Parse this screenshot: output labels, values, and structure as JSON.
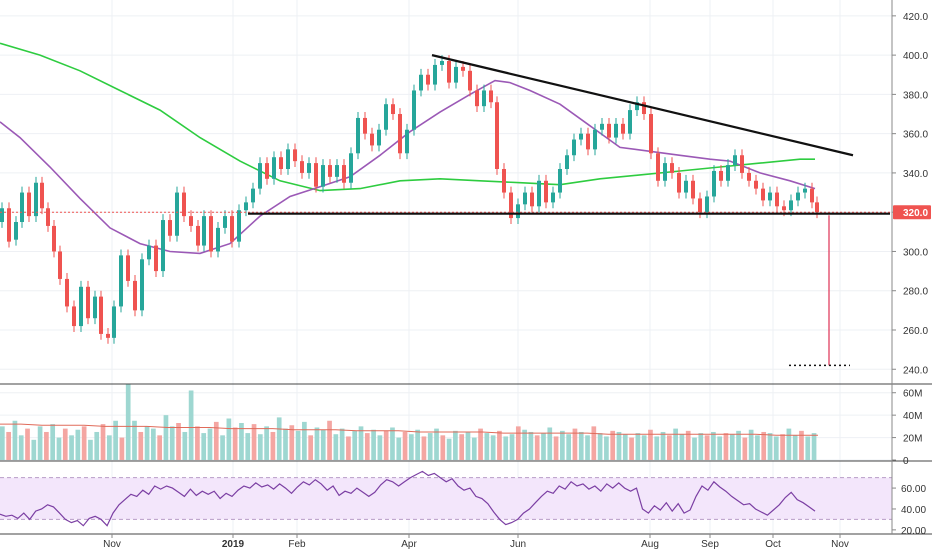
{
  "chart_data": [
    {
      "panel": "price",
      "type": "candlestick",
      "y_ticks": [
        "240.0",
        "260.0",
        "280.0",
        "300.0",
        "320.0",
        "340.0",
        "360.0",
        "380.0",
        "400.0",
        "420.0"
      ],
      "y_tick_values": [
        240,
        260,
        280,
        300,
        320,
        340,
        360,
        380,
        400,
        420
      ],
      "ylim": [
        233,
        424
      ],
      "last_price_label": "320.0",
      "last_price": 320,
      "target_price": 242,
      "support_level": 320,
      "downtrend_line": {
        "from": {
          "date": "2019-04-02",
          "value": 400
        },
        "to": {
          "date": "2019-10-28",
          "value": 349
        }
      },
      "ma_long": [
        [
          0,
          406
        ],
        [
          40,
          400
        ],
        [
          80,
          392
        ],
        [
          120,
          382
        ],
        [
          160,
          372
        ],
        [
          200,
          358
        ],
        [
          240,
          346
        ],
        [
          280,
          336
        ],
        [
          320,
          331
        ],
        [
          360,
          332
        ],
        [
          400,
          336
        ],
        [
          440,
          337
        ],
        [
          480,
          336
        ],
        [
          520,
          335
        ],
        [
          560,
          334
        ],
        [
          600,
          337
        ],
        [
          640,
          339
        ],
        [
          680,
          341
        ],
        [
          720,
          343
        ],
        [
          760,
          345
        ],
        [
          800,
          347
        ],
        [
          815,
          347
        ]
      ],
      "ma_short": [
        [
          0,
          366
        ],
        [
          20,
          358
        ],
        [
          50,
          343
        ],
        [
          80,
          327
        ],
        [
          110,
          312
        ],
        [
          140,
          304
        ],
        [
          170,
          300
        ],
        [
          200,
          299
        ],
        [
          230,
          304
        ],
        [
          260,
          318
        ],
        [
          290,
          328
        ],
        [
          320,
          333
        ],
        [
          350,
          338
        ],
        [
          380,
          349
        ],
        [
          410,
          361
        ],
        [
          440,
          371
        ],
        [
          470,
          380
        ],
        [
          495,
          387
        ],
        [
          510,
          386
        ],
        [
          530,
          382
        ],
        [
          560,
          375
        ],
        [
          590,
          364
        ],
        [
          620,
          353
        ],
        [
          650,
          351
        ],
        [
          680,
          349
        ],
        [
          710,
          347
        ],
        [
          730,
          346
        ],
        [
          760,
          340
        ],
        [
          790,
          336
        ],
        [
          815,
          332
        ]
      ],
      "candle_series": [
        [
          0,
          315,
          322
        ],
        [
          7,
          322,
          305
        ],
        [
          14,
          306,
          315
        ],
        [
          20,
          315,
          330
        ],
        [
          27,
          330,
          318
        ],
        [
          34,
          318,
          335
        ],
        [
          40,
          335,
          322
        ],
        [
          46,
          322,
          313
        ],
        [
          52,
          313,
          300
        ],
        [
          58,
          300,
          286
        ],
        [
          65,
          286,
          272
        ],
        [
          72,
          272,
          262
        ],
        [
          79,
          262,
          282
        ],
        [
          86,
          282,
          266
        ],
        [
          93,
          266,
          277
        ],
        [
          99,
          277,
          258
        ],
        [
          106,
          258,
          256
        ],
        [
          112,
          256,
          272
        ],
        [
          119,
          272,
          298
        ],
        [
          126,
          298,
          285
        ],
        [
          133,
          285,
          270
        ],
        [
          140,
          270,
          296
        ],
        [
          147,
          296,
          303
        ],
        [
          154,
          303,
          290
        ],
        [
          161,
          290,
          316
        ],
        [
          168,
          316,
          308
        ],
        [
          175,
          308,
          330
        ],
        [
          182,
          330,
          318
        ],
        [
          189,
          318,
          313
        ],
        [
          196,
          313,
          303
        ],
        [
          202,
          303,
          318
        ],
        [
          209,
          318,
          300
        ],
        [
          216,
          300,
          312
        ],
        [
          223,
          312,
          318
        ],
        [
          230,
          318,
          305
        ],
        [
          237,
          305,
          321
        ],
        [
          244,
          321,
          325
        ],
        [
          251,
          325,
          332
        ],
        [
          258,
          332,
          345
        ],
        [
          265,
          345,
          337
        ],
        [
          272,
          337,
          348
        ],
        [
          279,
          348,
          342
        ],
        [
          286,
          342,
          352
        ],
        [
          293,
          352,
          346
        ],
        [
          300,
          346,
          340
        ],
        [
          307,
          340,
          345
        ],
        [
          314,
          345,
          333
        ],
        [
          321,
          333,
          344
        ],
        [
          328,
          344,
          338
        ],
        [
          335,
          338,
          344
        ],
        [
          342,
          344,
          335
        ],
        [
          349,
          335,
          350
        ],
        [
          356,
          350,
          368
        ],
        [
          363,
          368,
          360
        ],
        [
          370,
          360,
          354
        ],
        [
          377,
          354,
          362
        ],
        [
          384,
          362,
          375
        ],
        [
          391,
          375,
          370
        ],
        [
          398,
          370,
          350
        ],
        [
          405,
          350,
          362
        ],
        [
          412,
          362,
          382
        ],
        [
          419,
          382,
          390
        ],
        [
          426,
          390,
          385
        ],
        [
          433,
          385,
          395
        ],
        [
          440,
          395,
          397
        ],
        [
          447,
          397,
          386
        ],
        [
          454,
          386,
          394
        ],
        [
          461,
          394,
          392
        ],
        [
          468,
          392,
          382
        ],
        [
          475,
          382,
          374
        ],
        [
          482,
          374,
          382
        ],
        [
          489,
          382,
          376
        ],
        [
          495,
          376,
          342
        ],
        [
          502,
          342,
          330
        ],
        [
          509,
          330,
          317
        ],
        [
          516,
          317,
          324
        ],
        [
          523,
          324,
          330
        ],
        [
          530,
          330,
          323
        ],
        [
          537,
          323,
          336
        ],
        [
          544,
          336,
          325
        ],
        [
          551,
          325,
          330
        ],
        [
          558,
          330,
          342
        ],
        [
          565,
          342,
          349
        ],
        [
          572,
          349,
          357
        ],
        [
          579,
          357,
          360
        ],
        [
          586,
          360,
          352
        ],
        [
          593,
          352,
          362
        ],
        [
          600,
          362,
          365
        ],
        [
          607,
          365,
          358
        ],
        [
          614,
          358,
          365
        ],
        [
          621,
          365,
          360
        ],
        [
          628,
          360,
          372
        ],
        [
          635,
          372,
          376
        ],
        [
          642,
          376,
          370
        ],
        [
          649,
          370,
          350
        ],
        [
          656,
          350,
          336
        ],
        [
          663,
          336,
          345
        ],
        [
          670,
          345,
          340
        ],
        [
          677,
          340,
          330
        ],
        [
          684,
          330,
          336
        ],
        [
          691,
          336,
          327
        ],
        [
          698,
          327,
          320
        ],
        [
          705,
          320,
          328
        ],
        [
          712,
          328,
          341
        ],
        [
          719,
          341,
          336
        ],
        [
          726,
          336,
          344
        ],
        [
          733,
          344,
          349
        ],
        [
          740,
          349,
          340
        ],
        [
          747,
          340,
          336
        ],
        [
          754,
          336,
          332
        ],
        [
          761,
          332,
          326
        ],
        [
          768,
          326,
          330
        ],
        [
          775,
          330,
          323
        ],
        [
          782,
          323,
          321
        ],
        [
          789,
          321,
          326
        ],
        [
          796,
          326,
          330
        ],
        [
          803,
          330,
          332
        ],
        [
          810,
          332,
          325
        ],
        [
          815,
          325,
          320
        ]
      ]
    },
    {
      "panel": "volume",
      "type": "bar",
      "y_ticks": [
        "0",
        "20M",
        "40M",
        "60M"
      ],
      "y_tick_values": [
        0,
        20,
        40,
        60
      ],
      "ylim": [
        0,
        66
      ],
      "values": [
        30,
        25,
        35,
        22,
        28,
        18,
        30,
        25,
        32,
        20,
        28,
        22,
        27,
        30,
        18,
        25,
        32,
        22,
        35,
        20,
        68,
        35,
        25,
        30,
        28,
        22,
        40,
        30,
        33,
        25,
        62,
        30,
        24,
        28,
        34,
        22,
        37,
        29,
        33,
        24,
        32,
        23,
        30,
        25,
        38,
        28,
        31,
        26,
        34,
        22,
        29,
        27,
        35,
        23,
        28,
        21,
        26,
        30,
        24,
        27,
        22,
        26,
        29,
        20,
        25,
        23,
        27,
        21,
        24,
        28,
        22,
        19,
        26,
        23,
        25,
        20,
        28,
        24,
        22,
        26,
        21,
        23,
        30,
        27,
        25,
        22,
        24,
        29,
        21,
        26,
        23,
        28,
        25,
        22,
        30,
        24,
        21,
        26,
        25,
        23,
        20,
        24,
        22,
        27,
        21,
        25,
        22,
        28,
        23,
        26,
        20,
        24,
        22,
        25,
        21,
        24,
        23,
        26,
        20,
        27,
        22,
        25,
        24,
        21,
        23,
        28,
        22,
        26,
        21,
        24
      ],
      "ma_values": [
        32,
        32,
        31,
        31,
        31,
        30,
        30,
        30,
        29,
        29,
        29,
        28,
        28,
        28,
        27,
        27,
        27,
        26,
        26,
        26,
        25,
        25,
        25,
        25,
        24,
        24,
        24,
        24,
        24,
        23,
        23,
        23,
        23,
        23,
        23,
        23,
        23,
        22,
        22,
        22
      ]
    },
    {
      "panel": "rsi",
      "type": "line",
      "y_ticks": [
        "20.00",
        "40.00",
        "60.00"
      ],
      "y_tick_values": [
        20,
        40,
        60
      ],
      "ylim": [
        17,
        84
      ],
      "band": [
        30,
        70
      ],
      "values": [
        35,
        33,
        34,
        31,
        36,
        30,
        38,
        40,
        44,
        42,
        36,
        30,
        27,
        29,
        24,
        31,
        33,
        30,
        24,
        36,
        44,
        49,
        54,
        52,
        58,
        54,
        62,
        59,
        62,
        60,
        56,
        52,
        59,
        53,
        57,
        54,
        57,
        50,
        55,
        52,
        58,
        62,
        60,
        65,
        61,
        63,
        59,
        64,
        60,
        55,
        61,
        66,
        63,
        68,
        64,
        58,
        62,
        53,
        57,
        55,
        60,
        56,
        52,
        56,
        63,
        68,
        66,
        62,
        66,
        70,
        73,
        76,
        72,
        74,
        70,
        66,
        69,
        62,
        58,
        60,
        52,
        50,
        45,
        37,
        30,
        25,
        27,
        30,
        36,
        40,
        46,
        52,
        57,
        55,
        62,
        59,
        66,
        62,
        64,
        59,
        62,
        57,
        64,
        60,
        65,
        60,
        57,
        60,
        40,
        36,
        43,
        39,
        46,
        38,
        45,
        36,
        39,
        52,
        62,
        58,
        66,
        61,
        57,
        52,
        48,
        44,
        45,
        40,
        37,
        34,
        39,
        44,
        51,
        56,
        49,
        46,
        42,
        38
      ]
    }
  ],
  "time_axis": {
    "labels": [
      "Nov",
      "2019",
      "Feb",
      "Apr",
      "Jun",
      "Aug",
      "Sep",
      "Oct",
      "Nov"
    ]
  },
  "colors": {
    "up": "#26a69a",
    "down": "#ef5350",
    "ma_long": "#2ecc40",
    "ma_short": "#9b59b6",
    "volume_up": "#9ed7d1",
    "volume_down": "#f4a6a2",
    "rsi_band": "#f3e6fb",
    "rsi_line": "#7b3fa3",
    "price_tag": "#ef5350",
    "target": "#e04060"
  }
}
